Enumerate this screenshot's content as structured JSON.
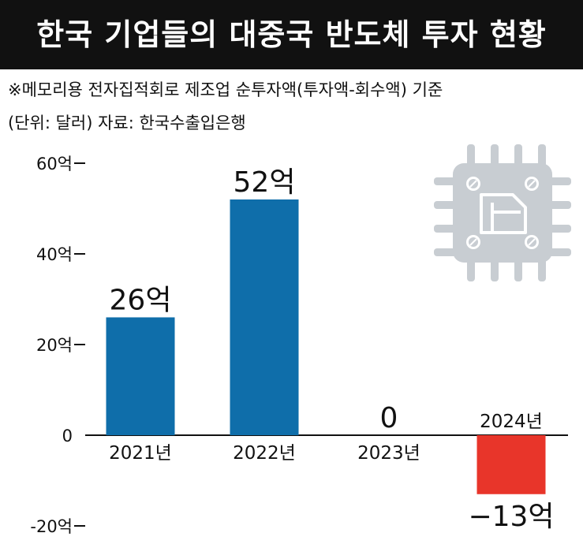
{
  "title": "한국 기업들의 대중국 반도체 투자 현황",
  "note": "※메모리용 전자집적회로 제조업 순투자액(투자액-회수액) 기준",
  "source": "(단위: 달러) 자료: 한국수출입은행",
  "colors": {
    "positive": "#0f6eaa",
    "negative": "#e8352a",
    "icon": "#c8cdd2"
  },
  "icon": "semiconductor-chip-icon",
  "chart_data": {
    "type": "bar",
    "categories": [
      "2021년",
      "2022년",
      "2023년",
      "2024년"
    ],
    "values": [
      26,
      52,
      0,
      -13
    ],
    "value_labels": [
      "26억",
      "52억",
      "0",
      "−13억"
    ],
    "yticks": [
      60,
      40,
      20,
      0,
      -20
    ],
    "ytick_labels": [
      "60억",
      "40억",
      "20억",
      "0",
      "-20억"
    ],
    "ylim": [
      -20,
      60
    ],
    "xlabel": "",
    "ylabel": ""
  }
}
